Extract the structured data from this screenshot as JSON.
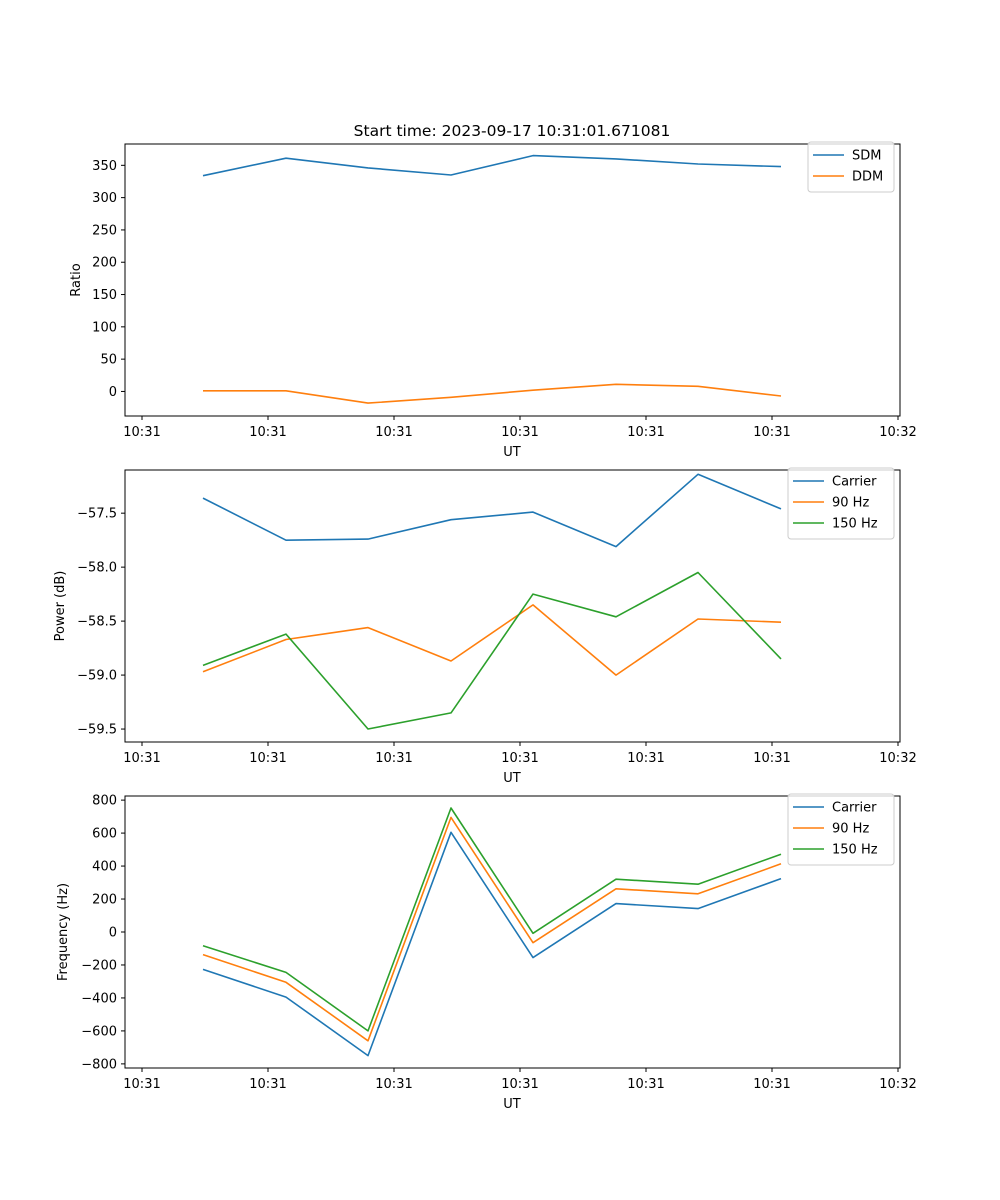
{
  "chart_data": [
    {
      "type": "line",
      "title": "Start time: 2023-09-17 10:31:01.671081",
      "xlabel": "UT",
      "ylabel": "Ratio",
      "x_tick_labels": [
        "10:31",
        "10:31",
        "10:31",
        "10:31",
        "10:31",
        "10:31",
        "10:31",
        "10:32"
      ],
      "ylim": [
        -38,
        383
      ],
      "y_ticks": [
        0,
        50,
        100,
        150,
        200,
        250,
        300,
        350
      ],
      "legend": "top-right",
      "series": [
        {
          "name": "SDM",
          "color": "#1f77b4",
          "values": [
            334,
            361,
            346,
            335,
            365,
            360,
            352,
            348
          ]
        },
        {
          "name": "DDM",
          "color": "#ff7f0e",
          "values": [
            1,
            1,
            -18,
            -9,
            2,
            11,
            8,
            -7
          ]
        }
      ]
    },
    {
      "type": "line",
      "title": "",
      "xlabel": "UT",
      "ylabel": "Power (dB)",
      "x_tick_labels": [
        "10:31",
        "10:31",
        "10:31",
        "10:31",
        "10:31",
        "10:31",
        "10:31",
        "10:32"
      ],
      "ylim": [
        -59.62,
        -57.1
      ],
      "y_ticks": [
        -59.5,
        -59.0,
        -58.5,
        -58.0,
        -57.5
      ],
      "y_tick_labels": [
        "−59.5",
        "−59.0",
        "−58.5",
        "−58.0",
        "−57.5"
      ],
      "legend": "top-right",
      "series": [
        {
          "name": "Carrier",
          "color": "#1f77b4",
          "values": [
            -57.36,
            -57.75,
            -57.74,
            -57.56,
            -57.49,
            -57.81,
            -57.14,
            -57.46
          ]
        },
        {
          "name": "90 Hz",
          "color": "#ff7f0e",
          "values": [
            -58.97,
            -58.67,
            -58.56,
            -58.87,
            -58.35,
            -59.0,
            -58.48,
            -58.51
          ]
        },
        {
          "name": "150 Hz",
          "color": "#2ca02c",
          "values": [
            -58.91,
            -58.62,
            -59.5,
            -59.35,
            -58.25,
            -58.46,
            -58.05,
            -58.85
          ]
        }
      ]
    },
    {
      "type": "line",
      "title": "",
      "xlabel": "UT",
      "ylabel": "Frequency (Hz)",
      "x_tick_labels": [
        "10:31",
        "10:31",
        "10:31",
        "10:31",
        "10:31",
        "10:31",
        "10:31",
        "10:32"
      ],
      "ylim": [
        -825,
        825
      ],
      "y_ticks": [
        -800,
        -600,
        -400,
        -200,
        0,
        200,
        400,
        600,
        800
      ],
      "y_tick_labels": [
        "−800",
        "−600",
        "−400",
        "−200",
        "0",
        "200",
        "400",
        "600",
        "800"
      ],
      "legend": "top-right",
      "series": [
        {
          "name": "Carrier",
          "color": "#1f77b4",
          "values": [
            -227,
            -395,
            -750,
            605,
            -155,
            172,
            142,
            324
          ]
        },
        {
          "name": "90 Hz",
          "color": "#ff7f0e",
          "values": [
            -137,
            -305,
            -660,
            695,
            -65,
            262,
            232,
            414
          ]
        },
        {
          "name": "150 Hz",
          "color": "#2ca02c",
          "values": [
            -84,
            -245,
            -600,
            752,
            -8,
            320,
            290,
            472
          ]
        }
      ]
    }
  ]
}
